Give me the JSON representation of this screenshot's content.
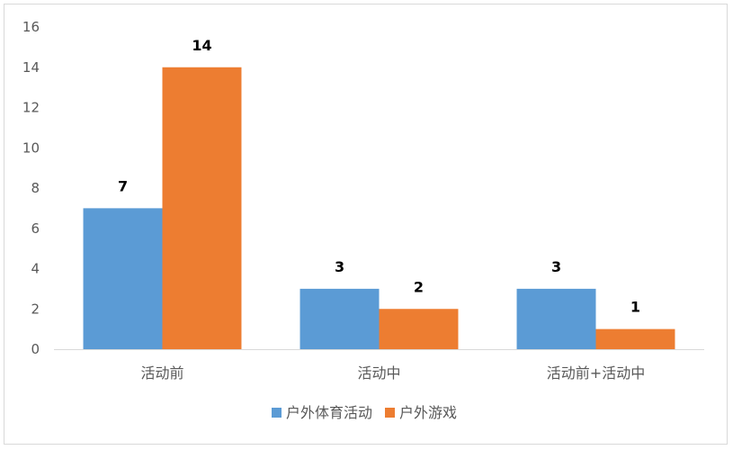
{
  "chart_data": {
    "type": "bar",
    "categories": [
      "活动前",
      "活动中",
      "活动前+活动中"
    ],
    "series": [
      {
        "name": "户外体育活动",
        "values": [
          7,
          3,
          3
        ],
        "color": "#5b9bd5"
      },
      {
        "name": "户外游戏",
        "values": [
          14,
          2,
          1
        ],
        "color": "#ed7d31"
      }
    ],
    "ylim": [
      0,
      16
    ],
    "yticks": [
      0,
      2,
      4,
      6,
      8,
      10,
      12,
      14,
      16
    ],
    "grid": false,
    "legend": "bottom",
    "data_labels": true
  }
}
